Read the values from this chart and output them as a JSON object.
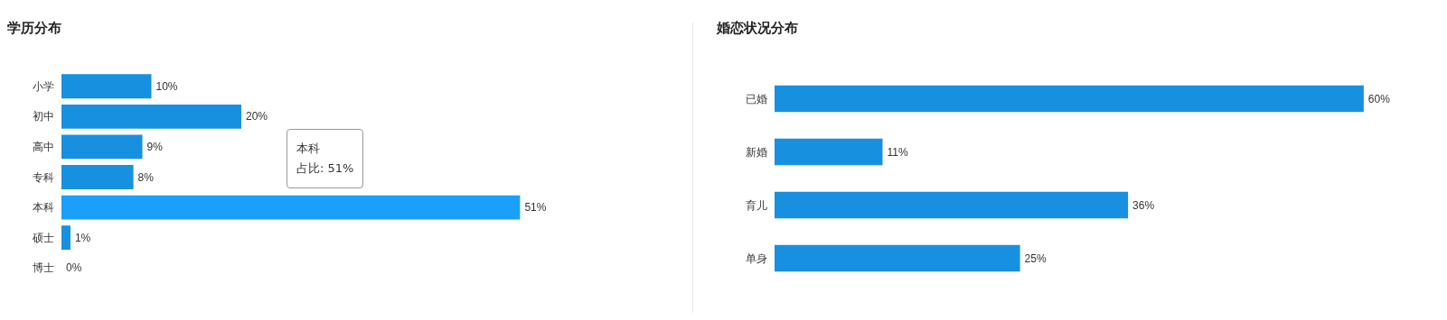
{
  "chart_data": [
    {
      "type": "bar",
      "orientation": "horizontal",
      "title": "学历分布",
      "categories": [
        "小学",
        "初中",
        "高中",
        "专科",
        "本科",
        "硕士",
        "博士"
      ],
      "values": [
        10,
        20,
        9,
        8,
        51,
        1,
        0
      ],
      "colors": [
        "#1890e0",
        "#1890e0",
        "#1890e0",
        "#1890e0",
        "#1aa0fa",
        "#1890e0",
        "#1890e0"
      ],
      "value_labels": [
        "10%",
        "20%",
        "9%",
        "8%",
        "51%",
        "1%",
        "0%"
      ],
      "annotations": [
        "本科",
        "占比: 51%"
      ]
    },
    {
      "type": "bar",
      "orientation": "horizontal",
      "title": "婚恋状况分布",
      "categories": [
        "已婚",
        "新婚",
        "育儿",
        "单身"
      ],
      "values": [
        60,
        11,
        36,
        25
      ],
      "colors": [
        "#1890e0",
        "#1890e0",
        "#1890e0",
        "#1890e0"
      ],
      "value_labels": [
        "60%",
        "11%",
        "36%",
        "25%"
      ]
    }
  ]
}
